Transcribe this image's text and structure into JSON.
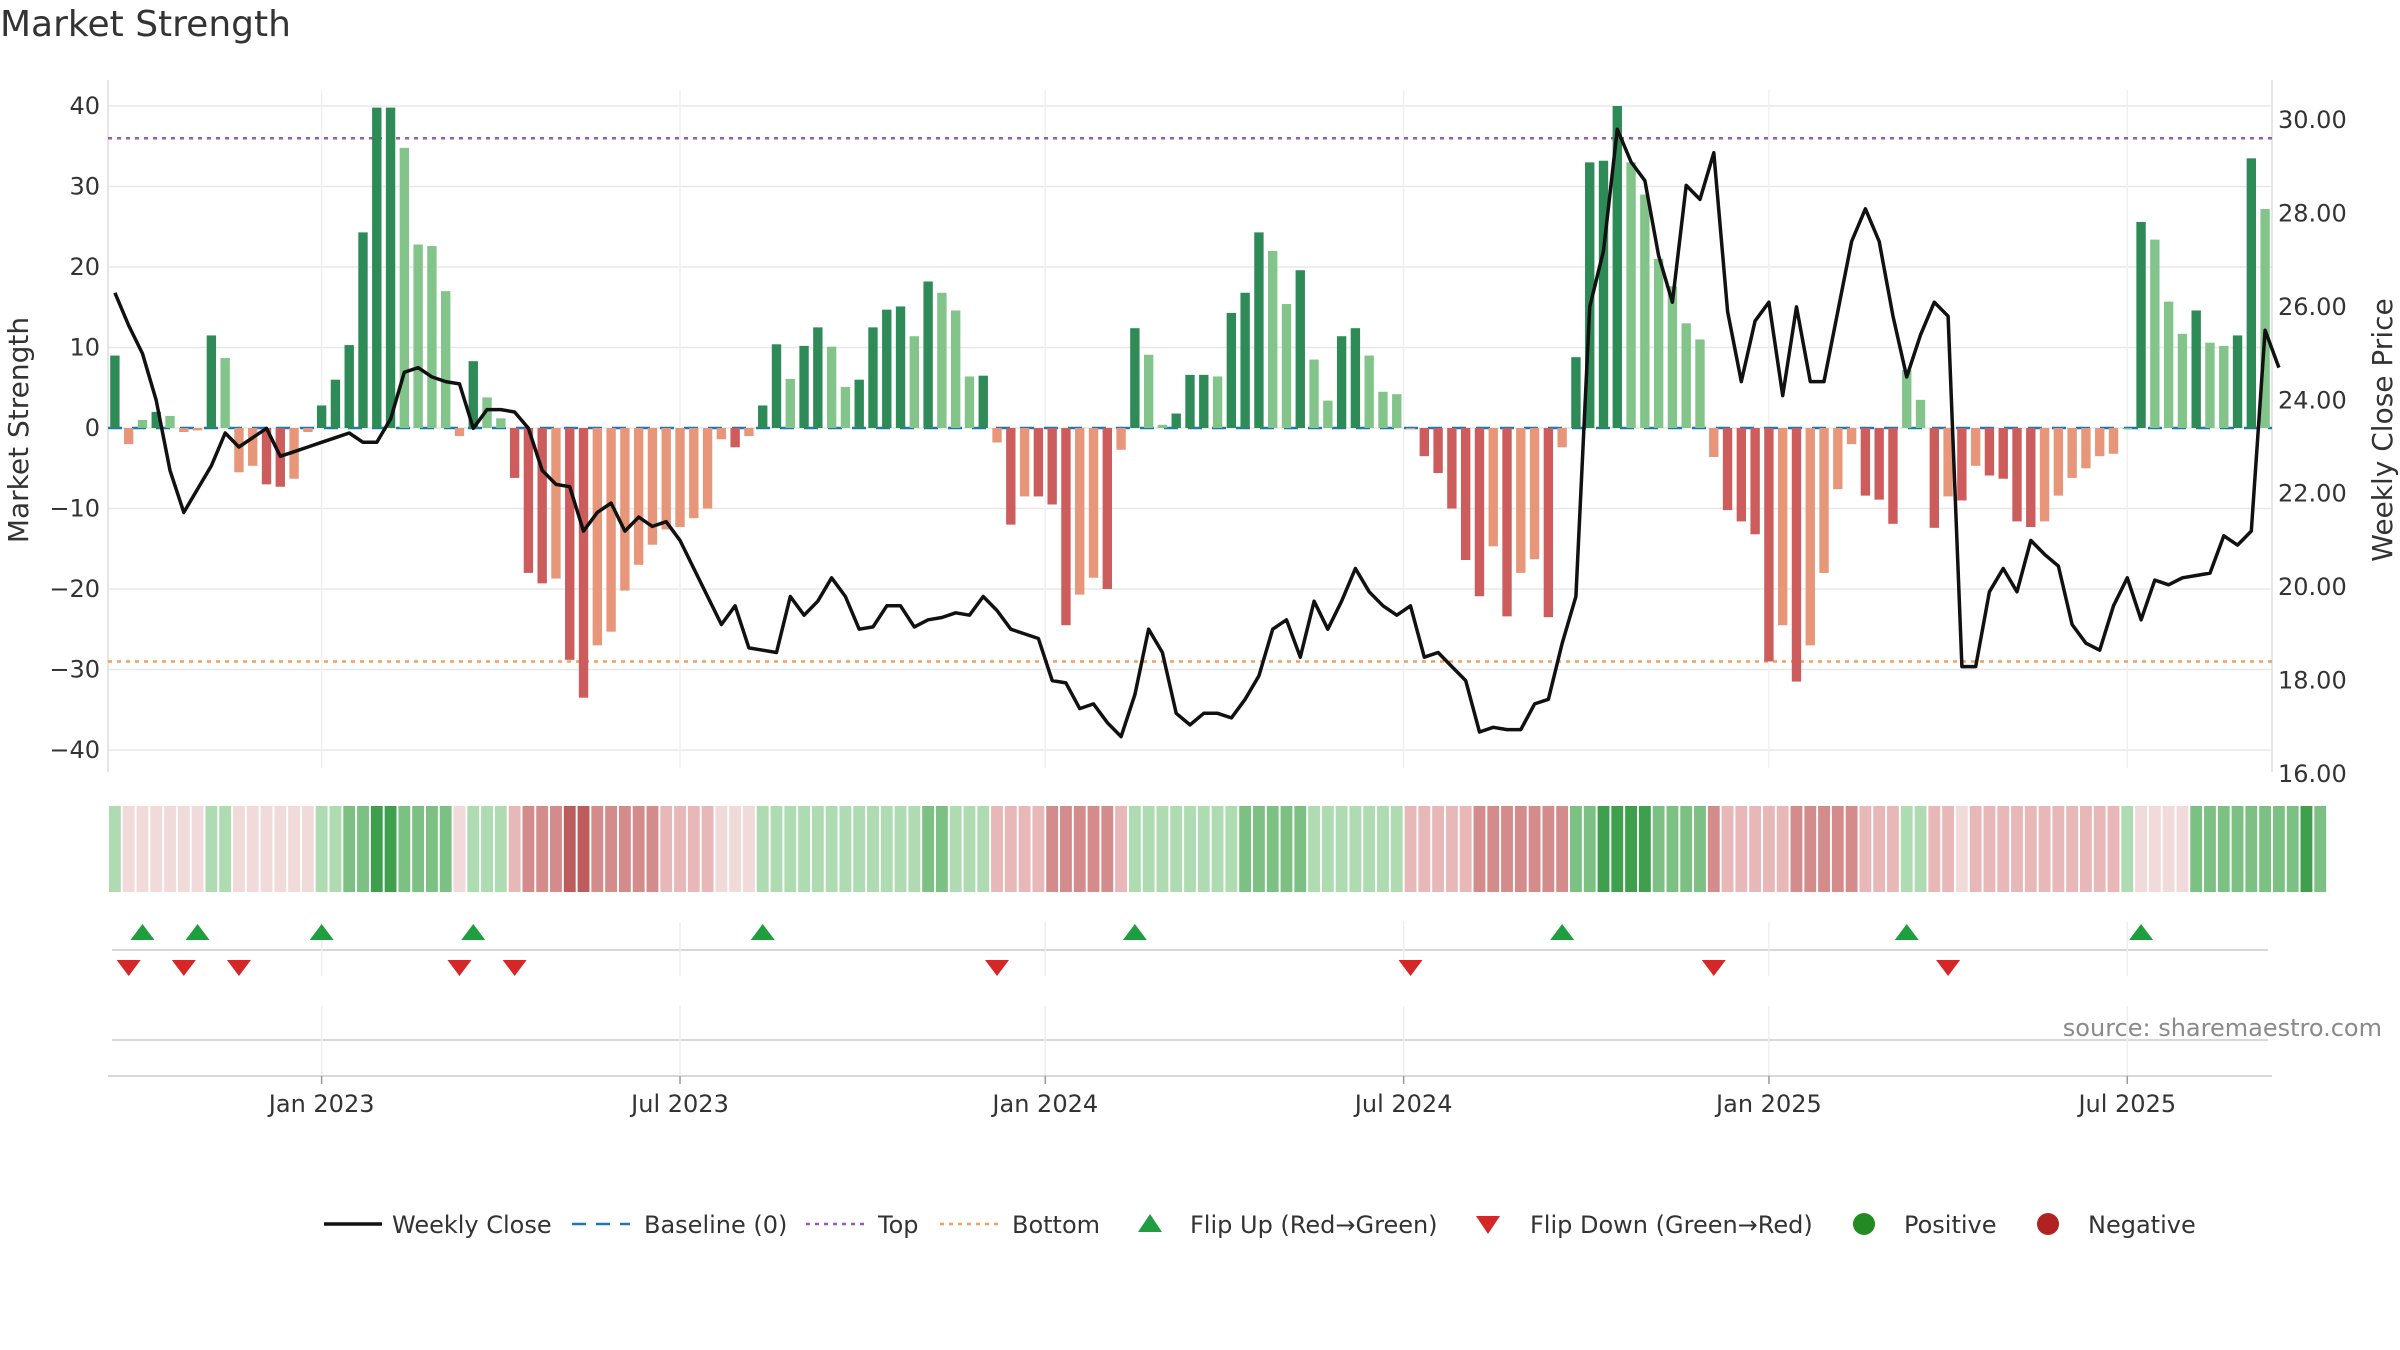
{
  "title": "Market Strength",
  "source": "source: sharemaestro.com",
  "colors": {
    "strong_green": "#2e8b57",
    "light_green": "#82c48a",
    "strong_red": "#cd5c5c",
    "light_red": "#e8967a",
    "line": "#111111",
    "baseline": "#1f77b4",
    "top": "#9b59b6",
    "bottom": "#f0a060",
    "flip_up": "#1e9e3e",
    "flip_down": "#d62728",
    "positive": "#228b22",
    "negative": "#b22222",
    "grid": "#e8e8e8"
  },
  "chart_data": {
    "type": "bar+line",
    "title": "Market Strength",
    "ylabel_left": "Market Strength",
    "ylabel_right": "Weekly Close Price",
    "ylim_left": [
      -42,
      41
    ],
    "ylim_right": [
      16.0,
      30.5
    ],
    "yticks_left": [
      40,
      30,
      20,
      10,
      0,
      -10,
      -20,
      -30,
      -40
    ],
    "yticks_right": [
      "30.00",
      "28.00",
      "26.00",
      "24.00",
      "22.00",
      "20.00",
      "18.00",
      "16.00"
    ],
    "x_tick_labels": [
      {
        "label": "Jan 2023",
        "index": 15
      },
      {
        "label": "Jul 2023",
        "index": 41
      },
      {
        "label": "Jan 2024",
        "index": 67.5
      },
      {
        "label": "Jul 2024",
        "index": 93.5
      },
      {
        "label": "Jan 2025",
        "index": 120
      },
      {
        "label": "Jul 2025",
        "index": 146
      }
    ],
    "top_line": 36,
    "bottom_line": -29,
    "baseline": 0,
    "strength": [
      9,
      -2,
      1,
      2,
      1.5,
      -0.5,
      -0.3,
      11.5,
      8.7,
      -5.5,
      -4.7,
      -7,
      -7.3,
      -6.3,
      -0.5,
      2.8,
      6,
      10.3,
      24.3,
      39.8,
      39.8,
      34.8,
      22.8,
      22.6,
      17,
      -1,
      8.3,
      3.8,
      1.2,
      -6.2,
      -18,
      -19.3,
      -18.7,
      -28.8,
      -33.5,
      -27,
      -25.3,
      -20.2,
      -17,
      -14.5,
      -12.6,
      -12.3,
      -11.2,
      -10,
      -1.4,
      -2.4,
      -1,
      2.8,
      10.4,
      6.1,
      10.2,
      12.5,
      10.1,
      5.1,
      6,
      12.5,
      14.7,
      15.1,
      11.4,
      18.2,
      16.8,
      14.6,
      6.4,
      6.5,
      -1.8,
      -12,
      -8.5,
      -8.5,
      -9.5,
      -24.5,
      -20.7,
      -18.6,
      -20,
      -2.7,
      12.4,
      9.1,
      0.4,
      1.8,
      6.6,
      6.6,
      6.4,
      14.3,
      16.8,
      24.3,
      22,
      15.4,
      19.6,
      8.5,
      3.4,
      11.4,
      12.4,
      9,
      4.5,
      4.2,
      -0.1,
      -3.5,
      -5.6,
      -10,
      -16.4,
      -20.9,
      -14.7,
      -23.4,
      -18,
      -16.3,
      -23.5,
      -2.4,
      8.8,
      33,
      33.2,
      40,
      33,
      29,
      21,
      17.6,
      13,
      11,
      -3.6,
      -10.2,
      -11.6,
      -13.2,
      -29,
      -24.5,
      -31.5,
      -27,
      -18,
      -7.6,
      -2,
      -8.4,
      -8.9,
      -11.9,
      7.2,
      3.5,
      -12.4,
      -8.5,
      -9,
      -4.7,
      -5.9,
      -6.3,
      -11.6,
      -12.3,
      -11.6,
      -8.4,
      -6.2,
      -5,
      -3.5,
      -3.2,
      0,
      25.6,
      23.4,
      15.7,
      11.7,
      14.6,
      10.6,
      10.2,
      11.5,
      33.5,
      27.2
    ],
    "weekly_close": [
      26.3,
      25.6,
      25.0,
      24.0,
      22.5,
      21.6,
      22.1,
      22.6,
      23.3,
      23.0,
      23.2,
      23.4,
      22.8,
      22.9,
      23.0,
      23.1,
      23.2,
      23.3,
      23.1,
      23.1,
      23.6,
      24.6,
      24.7,
      24.5,
      24.4,
      24.35,
      23.4,
      23.8,
      23.8,
      23.75,
      23.4,
      22.5,
      22.2,
      22.15,
      21.2,
      21.6,
      21.8,
      21.2,
      21.5,
      21.3,
      21.4,
      21.0,
      20.4,
      19.8,
      19.2,
      19.6,
      18.7,
      18.65,
      18.6,
      19.8,
      19.4,
      19.7,
      20.2,
      19.8,
      19.1,
      19.15,
      19.6,
      19.6,
      19.15,
      19.3,
      19.35,
      19.45,
      19.4,
      19.8,
      19.5,
      19.1,
      19.0,
      18.9,
      18.0,
      17.95,
      17.4,
      17.5,
      17.1,
      16.8,
      17.7,
      19.1,
      18.6,
      17.3,
      17.05,
      17.3,
      17.3,
      17.2,
      17.6,
      18.1,
      19.1,
      19.3,
      18.5,
      19.7,
      19.1,
      19.7,
      20.4,
      19.9,
      19.6,
      19.4,
      19.6,
      18.5,
      18.6,
      18.3,
      18.0,
      16.9,
      17.0,
      16.95,
      16.95,
      17.5,
      17.6,
      18.8,
      19.8,
      26.0,
      27.2,
      29.8,
      29.1,
      28.7,
      27.1,
      26.1,
      28.6,
      28.3,
      29.3,
      25.9,
      24.4,
      25.7,
      26.1,
      24.1,
      26.0,
      24.4,
      24.4,
      25.9,
      27.4,
      28.1,
      27.4,
      25.8,
      24.5,
      25.4,
      26.1,
      25.8,
      18.3,
      18.3,
      19.9,
      20.4,
      19.9,
      21.0,
      20.7,
      20.45,
      19.2,
      18.8,
      18.65,
      19.6,
      20.2,
      19.3,
      20.15,
      20.05,
      20.2,
      20.25,
      20.3,
      21.1,
      20.9,
      21.2,
      25.5,
      24.7
    ],
    "heat_strip": [
      1,
      0,
      0,
      0,
      0,
      0,
      0,
      1,
      1,
      0,
      0,
      0,
      0,
      0,
      0,
      1,
      1,
      2,
      2,
      3,
      3,
      2,
      2,
      2,
      2,
      0,
      1,
      1,
      1,
      1,
      2,
      2,
      2,
      3,
      3,
      2,
      2,
      2,
      2,
      2,
      1,
      1,
      1,
      1,
      0,
      0,
      0,
      1,
      1,
      1,
      1,
      1,
      1,
      1,
      1,
      1,
      1,
      1,
      1,
      2,
      2,
      1,
      1,
      1,
      1,
      1,
      1,
      1,
      2,
      2,
      2,
      2,
      2,
      1,
      1,
      1,
      1,
      1,
      1,
      1,
      1,
      1,
      2,
      2,
      2,
      2,
      2,
      1,
      1,
      1,
      1,
      1,
      1,
      1,
      1,
      1,
      1,
      1,
      1,
      2,
      2,
      2,
      2,
      2,
      2,
      2,
      2,
      2,
      3,
      3,
      3,
      3,
      2,
      2,
      2,
      2,
      2,
      1,
      1,
      1,
      1,
      1,
      2,
      2,
      2,
      2,
      2,
      1,
      1,
      1,
      1,
      1,
      1,
      1,
      0,
      1,
      1,
      1,
      1,
      1,
      1,
      1,
      1,
      1,
      1,
      1,
      1,
      0,
      0,
      0,
      0,
      2,
      2,
      2,
      2,
      2,
      2,
      2,
      2,
      3,
      2
    ],
    "flip_up": [
      2,
      6,
      15,
      26,
      47,
      74,
      105,
      130,
      147
    ],
    "flip_down": [
      1,
      5,
      9,
      25,
      29,
      64,
      94,
      116,
      133
    ],
    "legend": [
      "Weekly Close",
      "Baseline (0)",
      "Top",
      "Bottom",
      "Flip Up (Red→Green)",
      "Flip Down (Green→Red)",
      "Positive",
      "Negative"
    ]
  }
}
